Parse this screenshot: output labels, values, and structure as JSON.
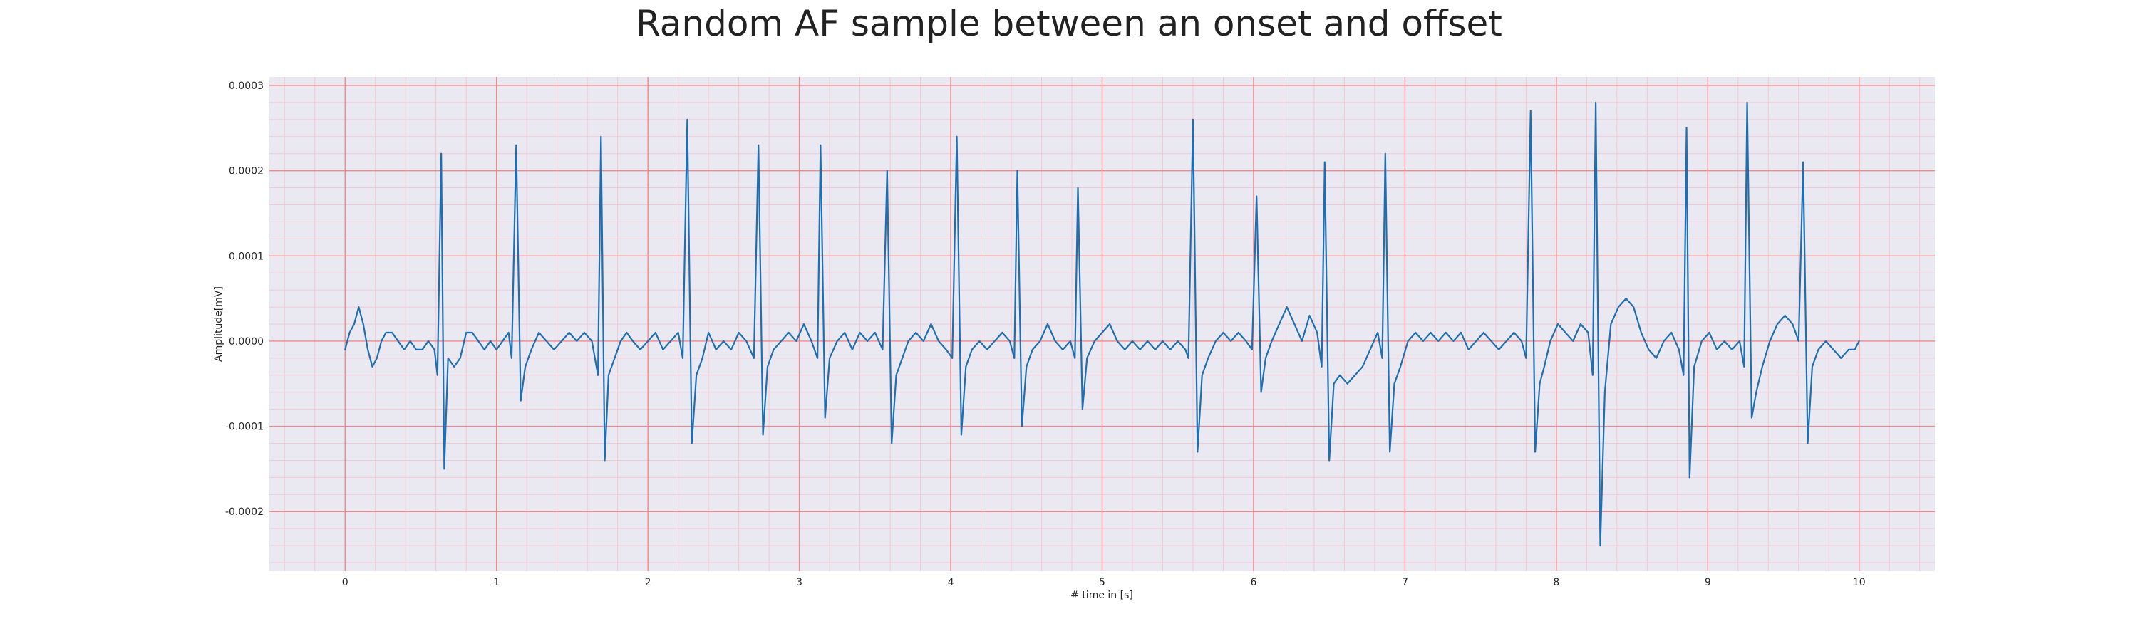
{
  "chart_data": {
    "type": "line",
    "title": "Random AF sample between an onset and offset",
    "xlabel": "# time in [s]",
    "ylabel": "Amplitude[mV]",
    "xlim": [
      -0.5,
      10.5
    ],
    "ylim": [
      -0.00027,
      0.00031
    ],
    "xticks": [
      0,
      1,
      2,
      3,
      4,
      5,
      6,
      7,
      8,
      9,
      10
    ],
    "xtick_labels": [
      "0",
      "1",
      "2",
      "3",
      "4",
      "5",
      "6",
      "7",
      "8",
      "9",
      "10"
    ],
    "yticks": [
      -0.0002,
      -0.0001,
      0.0,
      0.0001,
      0.0002,
      0.0003
    ],
    "ytick_labels": [
      "-0.0002",
      "-0.0001",
      "0.0000",
      "0.0001",
      "0.0002",
      "0.0003"
    ],
    "grid": true,
    "minor_grid": true,
    "colors": {
      "line": "#1f6fb0",
      "background": "#eae9f2",
      "major_grid": "#ef8a8a",
      "minor_grid": "#f2c9d2"
    },
    "series": [
      {
        "values": [
          [
            0.0,
            -1e-05
          ],
          [
            0.03,
            1e-05
          ],
          [
            0.06,
            2e-05
          ],
          [
            0.09,
            4e-05
          ],
          [
            0.12,
            2e-05
          ],
          [
            0.15,
            -1e-05
          ],
          [
            0.18,
            -3e-05
          ],
          [
            0.21,
            -2e-05
          ],
          [
            0.24,
            0.0
          ],
          [
            0.27,
            1e-05
          ],
          [
            0.31,
            1e-05
          ],
          [
            0.35,
            0.0
          ],
          [
            0.39,
            -1e-05
          ],
          [
            0.43,
            0.0
          ],
          [
            0.47,
            -1e-05
          ],
          [
            0.51,
            -1e-05
          ],
          [
            0.55,
            0.0
          ],
          [
            0.59,
            -1e-05
          ],
          [
            0.61,
            -4e-05
          ],
          [
            0.635,
            0.00022
          ],
          [
            0.655,
            -0.00015
          ],
          [
            0.68,
            -2e-05
          ],
          [
            0.72,
            -3e-05
          ],
          [
            0.76,
            -2e-05
          ],
          [
            0.8,
            1e-05
          ],
          [
            0.84,
            1e-05
          ],
          [
            0.88,
            0.0
          ],
          [
            0.92,
            -1e-05
          ],
          [
            0.96,
            0.0
          ],
          [
            1.0,
            -1e-05
          ],
          [
            1.04,
            0.0
          ],
          [
            1.08,
            1e-05
          ],
          [
            1.1,
            -2e-05
          ],
          [
            1.13,
            0.00023
          ],
          [
            1.16,
            -7e-05
          ],
          [
            1.19,
            -3e-05
          ],
          [
            1.23,
            -1e-05
          ],
          [
            1.28,
            1e-05
          ],
          [
            1.33,
            0.0
          ],
          [
            1.38,
            -1e-05
          ],
          [
            1.43,
            0.0
          ],
          [
            1.48,
            1e-05
          ],
          [
            1.53,
            0.0
          ],
          [
            1.58,
            1e-05
          ],
          [
            1.63,
            0.0
          ],
          [
            1.67,
            -4e-05
          ],
          [
            1.69,
            0.00024
          ],
          [
            1.715,
            -0.00014
          ],
          [
            1.74,
            -4e-05
          ],
          [
            1.78,
            -2e-05
          ],
          [
            1.82,
            0.0
          ],
          [
            1.86,
            1e-05
          ],
          [
            1.9,
            0.0
          ],
          [
            1.95,
            -1e-05
          ],
          [
            2.0,
            0.0
          ],
          [
            2.05,
            1e-05
          ],
          [
            2.1,
            -1e-05
          ],
          [
            2.15,
            0.0
          ],
          [
            2.2,
            1e-05
          ],
          [
            2.23,
            -2e-05
          ],
          [
            2.26,
            0.00026
          ],
          [
            2.29,
            -0.00012
          ],
          [
            2.32,
            -4e-05
          ],
          [
            2.36,
            -2e-05
          ],
          [
            2.4,
            1e-05
          ],
          [
            2.45,
            -1e-05
          ],
          [
            2.5,
            0.0
          ],
          [
            2.55,
            -1e-05
          ],
          [
            2.6,
            1e-05
          ],
          [
            2.65,
            0.0
          ],
          [
            2.7,
            -2e-05
          ],
          [
            2.73,
            0.00023
          ],
          [
            2.76,
            -0.00011
          ],
          [
            2.79,
            -3e-05
          ],
          [
            2.83,
            -1e-05
          ],
          [
            2.88,
            0.0
          ],
          [
            2.93,
            1e-05
          ],
          [
            2.98,
            0.0
          ],
          [
            3.03,
            2e-05
          ],
          [
            3.08,
            0.0
          ],
          [
            3.12,
            -2e-05
          ],
          [
            3.14,
            0.00023
          ],
          [
            3.17,
            -9e-05
          ],
          [
            3.2,
            -2e-05
          ],
          [
            3.25,
            0.0
          ],
          [
            3.3,
            1e-05
          ],
          [
            3.35,
            -1e-05
          ],
          [
            3.4,
            1e-05
          ],
          [
            3.45,
            0.0
          ],
          [
            3.5,
            1e-05
          ],
          [
            3.55,
            -1e-05
          ],
          [
            3.58,
            0.0002
          ],
          [
            3.61,
            -0.00012
          ],
          [
            3.64,
            -4e-05
          ],
          [
            3.68,
            -2e-05
          ],
          [
            3.72,
            0.0
          ],
          [
            3.77,
            1e-05
          ],
          [
            3.82,
            0.0
          ],
          [
            3.87,
            2e-05
          ],
          [
            3.92,
            0.0
          ],
          [
            3.97,
            -1e-05
          ],
          [
            4.01,
            -2e-05
          ],
          [
            4.04,
            0.00024
          ],
          [
            4.07,
            -0.00011
          ],
          [
            4.1,
            -3e-05
          ],
          [
            4.14,
            -1e-05
          ],
          [
            4.19,
            0.0
          ],
          [
            4.24,
            -1e-05
          ],
          [
            4.29,
            0.0
          ],
          [
            4.34,
            1e-05
          ],
          [
            4.39,
            0.0
          ],
          [
            4.42,
            -2e-05
          ],
          [
            4.44,
            0.0002
          ],
          [
            4.47,
            -0.0001
          ],
          [
            4.5,
            -3e-05
          ],
          [
            4.54,
            -1e-05
          ],
          [
            4.59,
            0.0
          ],
          [
            4.64,
            2e-05
          ],
          [
            4.69,
            0.0
          ],
          [
            4.74,
            -1e-05
          ],
          [
            4.79,
            0.0
          ],
          [
            4.82,
            -2e-05
          ],
          [
            4.84,
            0.00018
          ],
          [
            4.87,
            -8e-05
          ],
          [
            4.9,
            -2e-05
          ],
          [
            4.95,
            0.0
          ],
          [
            5.0,
            1e-05
          ],
          [
            5.05,
            2e-05
          ],
          [
            5.1,
            0.0
          ],
          [
            5.15,
            -1e-05
          ],
          [
            5.2,
            0.0
          ],
          [
            5.25,
            -1e-05
          ],
          [
            5.3,
            0.0
          ],
          [
            5.35,
            -1e-05
          ],
          [
            5.4,
            0.0
          ],
          [
            5.45,
            -1e-05
          ],
          [
            5.5,
            0.0
          ],
          [
            5.55,
            -1e-05
          ],
          [
            5.57,
            -2e-05
          ],
          [
            5.6,
            0.00026
          ],
          [
            5.63,
            -0.00013
          ],
          [
            5.66,
            -4e-05
          ],
          [
            5.7,
            -2e-05
          ],
          [
            5.75,
            0.0
          ],
          [
            5.8,
            1e-05
          ],
          [
            5.85,
            0.0
          ],
          [
            5.9,
            1e-05
          ],
          [
            5.95,
            0.0
          ],
          [
            5.99,
            -1e-05
          ],
          [
            6.02,
            0.00017
          ],
          [
            6.05,
            -6e-05
          ],
          [
            6.08,
            -2e-05
          ],
          [
            6.12,
            0.0
          ],
          [
            6.17,
            2e-05
          ],
          [
            6.22,
            4e-05
          ],
          [
            6.27,
            2e-05
          ],
          [
            6.32,
            0.0
          ],
          [
            6.37,
            3e-05
          ],
          [
            6.42,
            1e-05
          ],
          [
            6.45,
            -3e-05
          ],
          [
            6.47,
            0.00021
          ],
          [
            6.5,
            -0.00014
          ],
          [
            6.53,
            -5e-05
          ],
          [
            6.57,
            -4e-05
          ],
          [
            6.62,
            -5e-05
          ],
          [
            6.67,
            -4e-05
          ],
          [
            6.72,
            -3e-05
          ],
          [
            6.77,
            -1e-05
          ],
          [
            6.82,
            1e-05
          ],
          [
            6.85,
            -2e-05
          ],
          [
            6.87,
            0.00022
          ],
          [
            6.9,
            -0.00013
          ],
          [
            6.93,
            -5e-05
          ],
          [
            6.97,
            -3e-05
          ],
          [
            7.02,
            0.0
          ],
          [
            7.07,
            1e-05
          ],
          [
            7.12,
            0.0
          ],
          [
            7.17,
            1e-05
          ],
          [
            7.22,
            0.0
          ],
          [
            7.27,
            1e-05
          ],
          [
            7.32,
            0.0
          ],
          [
            7.37,
            1e-05
          ],
          [
            7.42,
            -1e-05
          ],
          [
            7.47,
            0.0
          ],
          [
            7.52,
            1e-05
          ],
          [
            7.57,
            0.0
          ],
          [
            7.62,
            -1e-05
          ],
          [
            7.67,
            0.0
          ],
          [
            7.72,
            1e-05
          ],
          [
            7.77,
            0.0
          ],
          [
            7.8,
            -2e-05
          ],
          [
            7.83,
            0.00027
          ],
          [
            7.86,
            -0.00013
          ],
          [
            7.89,
            -5e-05
          ],
          [
            7.92,
            -3e-05
          ],
          [
            7.96,
            0.0
          ],
          [
            8.01,
            2e-05
          ],
          [
            8.06,
            1e-05
          ],
          [
            8.11,
            0.0
          ],
          [
            8.16,
            2e-05
          ],
          [
            8.21,
            1e-05
          ],
          [
            8.24,
            -4e-05
          ],
          [
            8.26,
            0.00028
          ],
          [
            8.29,
            -0.00024
          ],
          [
            8.32,
            -6e-05
          ],
          [
            8.36,
            2e-05
          ],
          [
            8.41,
            4e-05
          ],
          [
            8.46,
            5e-05
          ],
          [
            8.51,
            4e-05
          ],
          [
            8.56,
            1e-05
          ],
          [
            8.61,
            -1e-05
          ],
          [
            8.66,
            -2e-05
          ],
          [
            8.71,
            0.0
          ],
          [
            8.76,
            1e-05
          ],
          [
            8.81,
            -1e-05
          ],
          [
            8.84,
            -4e-05
          ],
          [
            8.86,
            0.00025
          ],
          [
            8.88,
            -0.00016
          ],
          [
            8.91,
            -3e-05
          ],
          [
            8.96,
            0.0
          ],
          [
            9.01,
            1e-05
          ],
          [
            9.06,
            -1e-05
          ],
          [
            9.11,
            0.0
          ],
          [
            9.16,
            -1e-05
          ],
          [
            9.21,
            0.0
          ],
          [
            9.24,
            -3e-05
          ],
          [
            9.26,
            0.00028
          ],
          [
            9.29,
            -9e-05
          ],
          [
            9.32,
            -6e-05
          ],
          [
            9.36,
            -3e-05
          ],
          [
            9.41,
            0.0
          ],
          [
            9.46,
            2e-05
          ],
          [
            9.51,
            3e-05
          ],
          [
            9.56,
            2e-05
          ],
          [
            9.6,
            0.0
          ],
          [
            9.63,
            0.00021
          ],
          [
            9.66,
            -0.00012
          ],
          [
            9.69,
            -3e-05
          ],
          [
            9.73,
            -1e-05
          ],
          [
            9.78,
            0.0
          ],
          [
            9.83,
            -1e-05
          ],
          [
            9.88,
            -2e-05
          ],
          [
            9.93,
            -1e-05
          ],
          [
            9.97,
            -1e-05
          ],
          [
            10.0,
            0.0
          ]
        ]
      }
    ]
  }
}
